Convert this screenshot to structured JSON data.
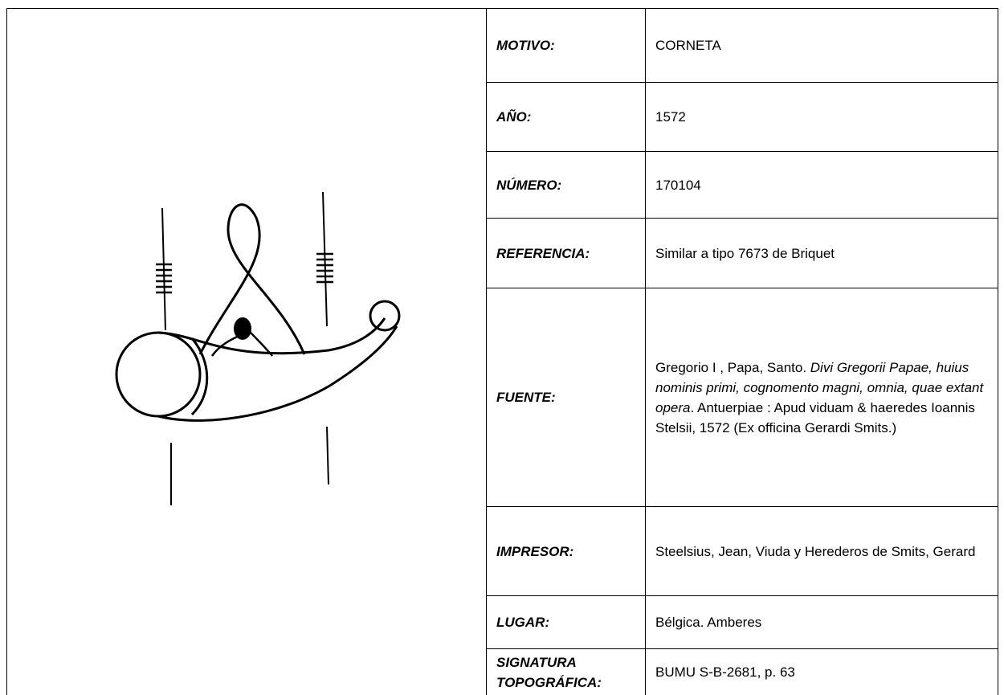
{
  "table": {
    "rows": [
      {
        "label": "MOTIVO:",
        "value": [
          "CORNETA"
        ]
      },
      {
        "label": "AÑO:",
        "value": [
          "1572"
        ]
      },
      {
        "label": "NÚMERO:",
        "value": [
          "170104"
        ]
      },
      {
        "label": "REFERENCIA:",
        "value": [
          "Similar a tipo 7673 de Briquet"
        ]
      },
      {
        "label": "FUENTE:",
        "value": [
          "Gregorio I , Papa, Santo. ",
          "Divi Gregorii Papae, huius nominis primi, cognomento magni, omnia, quae extant opera",
          ". Antuerpiae : Apud viduam & haeredes Ioannis Stelsii, 1572 (Ex officina Gerardi Smits.)"
        ]
      },
      {
        "label": "IMPRESOR:",
        "value": [
          "Steelsius, Jean, Viuda y Herederos de Smits, Gerard"
        ]
      },
      {
        "label": "LUGAR:",
        "value": [
          "Bélgica. Amberes"
        ]
      },
      {
        "label": "SIGNATURA TOPOGRÁFICA:",
        "value": [
          "BUMU S-B-2681, p. 63"
        ]
      }
    ]
  }
}
